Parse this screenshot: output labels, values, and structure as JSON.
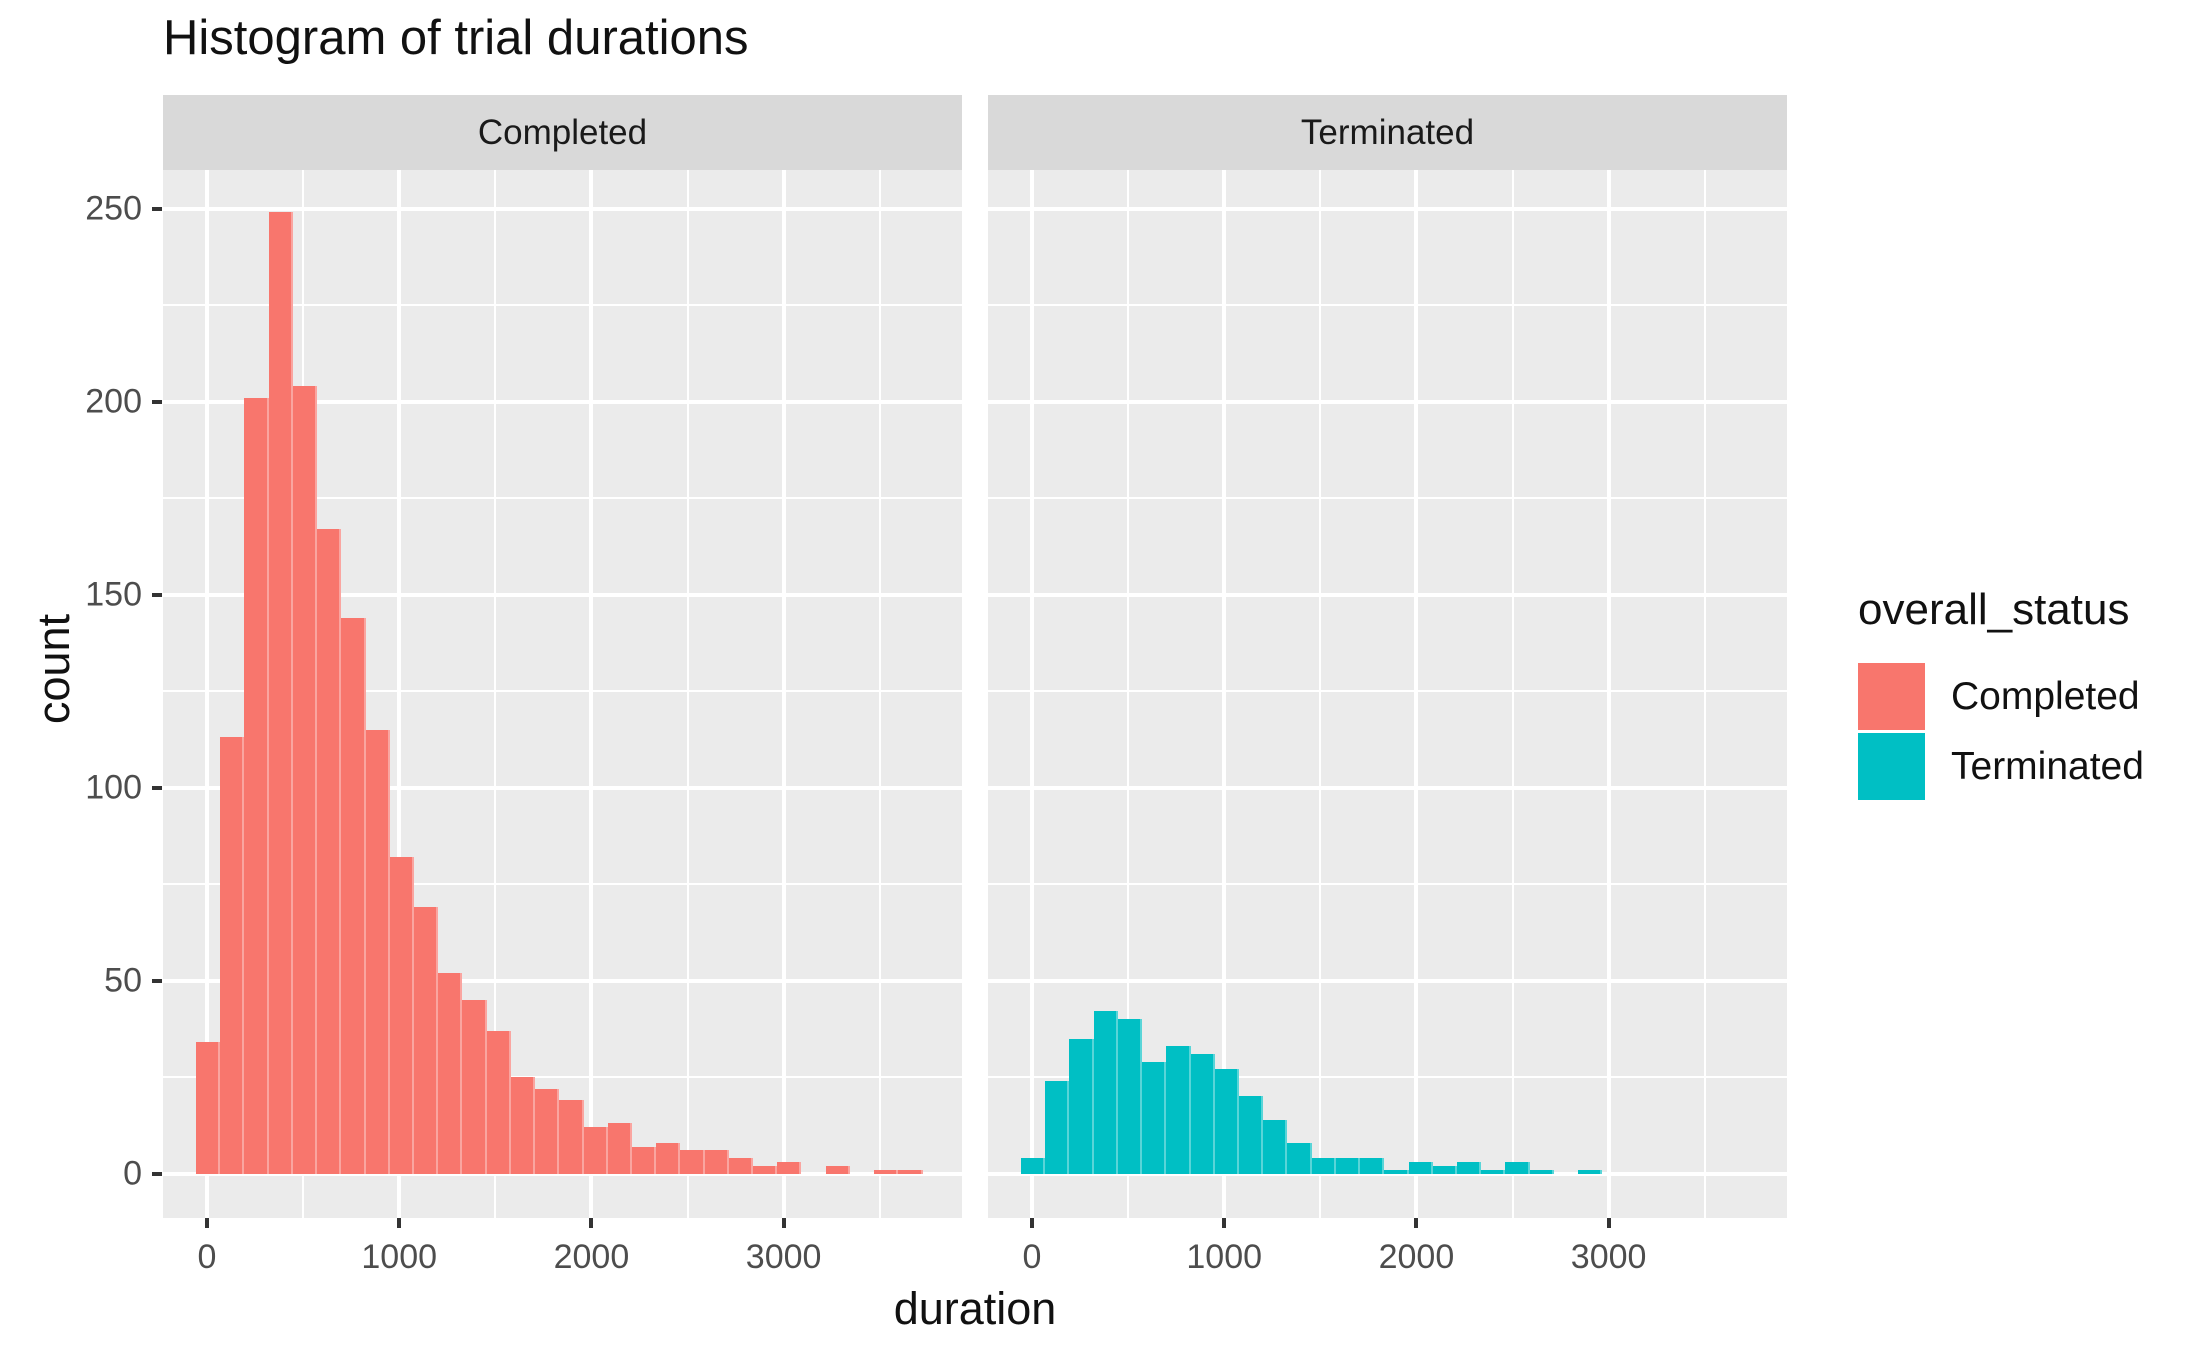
{
  "title": "Histogram of trial durations",
  "axes": {
    "x_title": "duration",
    "y_title": "count",
    "x_tick_labels": [
      "0",
      "1000",
      "2000",
      "3000"
    ],
    "y_tick_labels": [
      "0",
      "50",
      "100",
      "150",
      "200",
      "250"
    ]
  },
  "legend": {
    "title": "overall_status",
    "items": [
      {
        "label": "Completed",
        "color": "#F8766D"
      },
      {
        "label": "Terminated",
        "color": "#00BFC4"
      }
    ]
  },
  "chart_data": {
    "type": "bar",
    "subtype": "faceted-histogram",
    "title": "Histogram of trial durations",
    "xlabel": "duration",
    "ylabel": "count",
    "grid": true,
    "legend_position": "right",
    "legend_title": "overall_status",
    "bin_width": 126,
    "bin_start": -57,
    "bin_centers": [
      6,
      132,
      258,
      384,
      510,
      636,
      762,
      888,
      1014,
      1140,
      1266,
      1392,
      1518,
      1644,
      1770,
      1896,
      2022,
      2148,
      2274,
      2400,
      2526,
      2652,
      2778,
      2904,
      3030,
      3156,
      3282,
      3408,
      3534,
      3660
    ],
    "facets": [
      {
        "label": "Completed",
        "color": "#F8766D",
        "counts": [
          34,
          113,
          201,
          249,
          204,
          167,
          144,
          115,
          82,
          69,
          52,
          45,
          37,
          25,
          22,
          19,
          12,
          13,
          7,
          8,
          6,
          6,
          4,
          2,
          3,
          0,
          2,
          0,
          1,
          1
        ]
      },
      {
        "label": "Terminated",
        "color": "#00BFC4",
        "counts": [
          4,
          24,
          35,
          42,
          40,
          29,
          33,
          31,
          27,
          20,
          14,
          8,
          4,
          4,
          4,
          1,
          3,
          2,
          3,
          1,
          3,
          1,
          0,
          1,
          0,
          0,
          0,
          0,
          0,
          0
        ]
      }
    ],
    "x_ticks": [
      0,
      1000,
      2000,
      3000
    ],
    "x_minor_ticks": [
      500,
      1500,
      2500,
      3500
    ],
    "y_ticks": [
      0,
      50,
      100,
      150,
      200,
      250
    ],
    "y_minor_ticks": [
      25,
      75,
      125,
      175,
      225
    ],
    "xlim": [
      -229,
      3928
    ],
    "ylim": [
      -11.5,
      260
    ],
    "theme": {
      "panel_bg": "#EBEBEB",
      "strip_bg": "#D9D9D9",
      "grid_color": "#FFFFFF",
      "tick_color": "#333333",
      "tick_label_color": "#4D4D4D",
      "text_color": "#111111"
    }
  }
}
